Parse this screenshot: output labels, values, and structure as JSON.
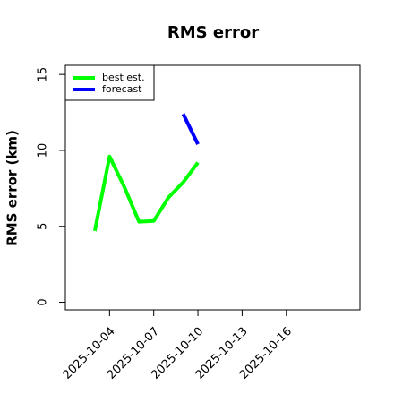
{
  "chart_data": {
    "type": "line",
    "title": "RMS error",
    "y_label": "RMS error (km)",
    "x": [
      "2025-10-03",
      "2025-10-04",
      "2025-10-05",
      "2025-10-06",
      "2025-10-07",
      "2025-10-08",
      "2025-10-09",
      "2025-10-10"
    ],
    "series": [
      {
        "name": "best est.",
        "color": "#00ff00",
        "values": [
          4.7,
          9.6,
          7.6,
          5.3,
          5.35,
          6.9,
          7.9,
          9.2
        ]
      },
      {
        "name": "forecast",
        "color": "#0000ff",
        "values": [
          null,
          null,
          null,
          null,
          null,
          null,
          12.4,
          10.4
        ]
      }
    ],
    "xlim": [
      "2025-10-01",
      "2025-10-21"
    ],
    "xticks": [
      "2025-10-04",
      "2025-10-07",
      "2025-10-10",
      "2025-10-13",
      "2025-10-16"
    ],
    "ylim": [
      -0.5,
      15.6
    ],
    "yticks": [
      0,
      5,
      10,
      15
    ],
    "legend": "top-left"
  }
}
